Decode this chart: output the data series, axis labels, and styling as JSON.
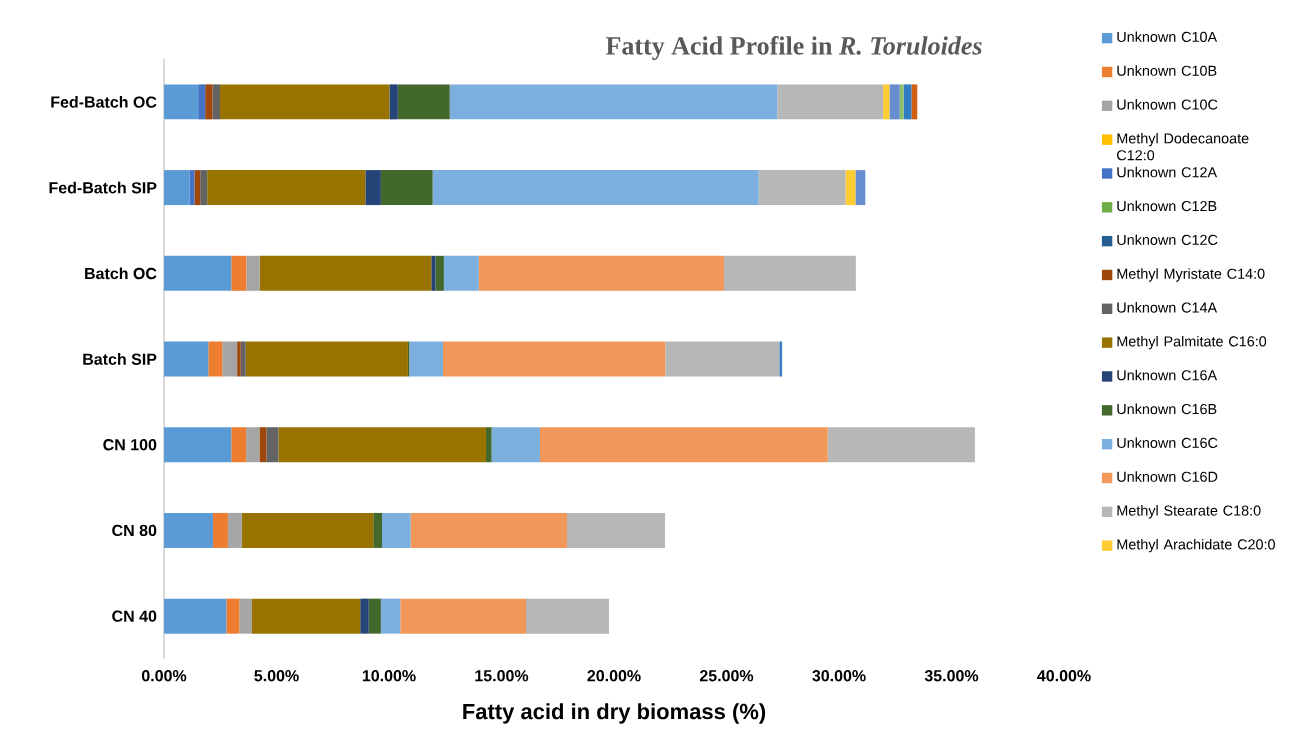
{
  "chart_data": {
    "type": "bar",
    "orientation": "horizontal",
    "stacked": true,
    "title": "Fatty Acid Profile in *R. Toruloides*",
    "xlabel": "Fatty acid in  dry biomass (%)",
    "categories": [
      "Fed-Batch OC",
      "Fed-Batch SIP",
      "Batch OC",
      "Batch SIP",
      "CN 100",
      "CN 80",
      "CN 40"
    ],
    "xlim": [
      0,
      40
    ],
    "xticks": [
      {
        "value": 0,
        "label": "0.00%"
      },
      {
        "value": 5,
        "label": "5.00%"
      },
      {
        "value": 10,
        "label": "10.00%"
      },
      {
        "value": 15,
        "label": "15.00%"
      },
      {
        "value": 20,
        "label": "20.00%"
      },
      {
        "value": 25,
        "label": "25.00%"
      },
      {
        "value": 30,
        "label": "30.00%"
      },
      {
        "value": 35,
        "label": "35.00%"
      },
      {
        "value": 40,
        "label": "40.00%"
      }
    ],
    "legend": "right",
    "grid": false,
    "series": [
      {
        "name": "Unknown C10A",
        "color": "#5b9bd5",
        "values": [
          1.52,
          1.13,
          2.99,
          1.97,
          2.99,
          2.18,
          2.77
        ]
      },
      {
        "name": "Unknown C10B",
        "color": "#ed7d31",
        "values": [
          0,
          0,
          0.67,
          0.62,
          0.66,
          0.66,
          0.58
        ]
      },
      {
        "name": "Unknown C10C",
        "color": "#a5a5a5",
        "values": [
          0,
          0,
          0.59,
          0.66,
          0.59,
          0.62,
          0.56
        ]
      },
      {
        "name": "Methyl Dodecanoate C12:0",
        "color": "#ffc000",
        "values": [
          0,
          0,
          0,
          0,
          0,
          0,
          0
        ]
      },
      {
        "name": "Unknown C12A",
        "color": "#4472c4",
        "values": [
          0.31,
          0.22,
          0,
          0,
          0,
          0,
          0
        ]
      },
      {
        "name": "Unknown C12B",
        "color": "#70ad47",
        "values": [
          0,
          0,
          0,
          0,
          0,
          0,
          0
        ]
      },
      {
        "name": "Unknown C12C",
        "color": "#255e91",
        "values": [
          0,
          0,
          0,
          0,
          0,
          0,
          0
        ]
      },
      {
        "name": "Methyl Myristate C14:0",
        "color": "#9e480e",
        "values": [
          0.33,
          0.26,
          0,
          0.16,
          0.31,
          0,
          0
        ]
      },
      {
        "name": "Unknown C14A",
        "color": "#636363",
        "values": [
          0.33,
          0.31,
          0,
          0.22,
          0.54,
          0,
          0
        ]
      },
      {
        "name": "Methyl Palmitate C16:0",
        "color": "#997300",
        "values": [
          7.53,
          7.03,
          7.63,
          7.21,
          9.22,
          5.84,
          4.81
        ]
      },
      {
        "name": "Unknown C16A",
        "color": "#264478",
        "values": [
          0.37,
          0.69,
          0.18,
          0,
          0,
          0,
          0.38
        ]
      },
      {
        "name": "Unknown C16B",
        "color": "#43682b",
        "values": [
          2.31,
          2.3,
          0.38,
          0.06,
          0.25,
          0.39,
          0.54
        ]
      },
      {
        "name": "Unknown C16C",
        "color": "#7cafdd",
        "values": [
          14.56,
          14.49,
          1.55,
          1.5,
          2.15,
          1.27,
          0.86
        ]
      },
      {
        "name": "Unknown C16D",
        "color": "#f1975a",
        "values": [
          0,
          0,
          10.9,
          9.88,
          12.79,
          6.95,
          5.59
        ]
      },
      {
        "name": "Methyl Stearate C18:0",
        "color": "#b7b7b7",
        "values": [
          4.7,
          3.86,
          5.86,
          5.07,
          6.54,
          4.36,
          3.69
        ]
      },
      {
        "name": "Methyl Arachidate C20:0",
        "color": "#ffcd33",
        "values": [
          0.28,
          0.44,
          0,
          0,
          0,
          0,
          0
        ]
      },
      {
        "color": "#698ed0",
        "values": [
          0.46,
          0.44,
          0,
          0,
          0,
          0,
          0
        ]
      },
      {
        "color": "#8cc168",
        "values": [
          0.17,
          0,
          0,
          0,
          0,
          0,
          0
        ]
      },
      {
        "color": "#327dc2",
        "values": [
          0.35,
          0,
          0,
          0.12,
          0,
          0,
          0
        ]
      },
      {
        "color": "#d26012",
        "values": [
          0.26,
          0,
          0,
          0,
          0,
          0,
          0
        ]
      }
    ]
  }
}
